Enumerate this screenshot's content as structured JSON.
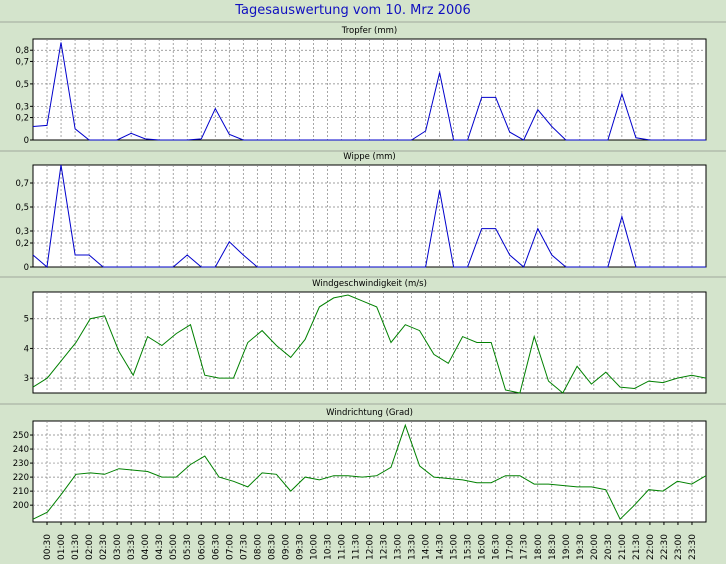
{
  "title": "Tagesauswertung vom 10. Mrz 2006",
  "x_labels": [
    "00:30",
    "01:00",
    "01:30",
    "02:00",
    "02:30",
    "03:00",
    "03:30",
    "04:00",
    "04:30",
    "05:00",
    "05:30",
    "06:00",
    "06:30",
    "07:00",
    "07:30",
    "08:00",
    "08:30",
    "09:00",
    "09:30",
    "10:00",
    "10:30",
    "11:00",
    "11:30",
    "12:00",
    "12:30",
    "13:00",
    "13:30",
    "14:00",
    "14:30",
    "15:00",
    "15:30",
    "16:00",
    "16:30",
    "17:00",
    "17:30",
    "18:00",
    "18:30",
    "19:00",
    "19:30",
    "20:00",
    "20:30",
    "21:00",
    "21:30",
    "22:00",
    "22:30",
    "23:00",
    "23:30"
  ],
  "chart_data": [
    {
      "type": "line",
      "title": "Tropfer (mm)",
      "color": "#0000cc",
      "ylim": [
        0,
        0.9
      ],
      "yticks": [
        0,
        0.2,
        0.3,
        0.5,
        0.7,
        0.8
      ],
      "ytick_labels": [
        "0",
        "0,2",
        "0,3",
        "0,5",
        "0,7",
        "0,8"
      ],
      "values": [
        0.12,
        0.13,
        0.87,
        0.1,
        0,
        0,
        0,
        0.06,
        0.01,
        0,
        0,
        0,
        0.01,
        0.28,
        0.05,
        0,
        0,
        0,
        0,
        0,
        0,
        0,
        0,
        0,
        0,
        0,
        0,
        0,
        0.08,
        0.6,
        0,
        0,
        0.38,
        0.38,
        0.07,
        0,
        0.27,
        0.12,
        0,
        0,
        0,
        0,
        0.41,
        0.02,
        0,
        0,
        0,
        0,
        0
      ]
    },
    {
      "type": "line",
      "title": "Wippe (mm)",
      "color": "#0000cc",
      "ylim": [
        0,
        0.85
      ],
      "yticks": [
        0,
        0.2,
        0.3,
        0.5,
        0.7
      ],
      "ytick_labels": [
        "0",
        "0,2",
        "0,3",
        "0,5",
        "0,7"
      ],
      "values": [
        0.1,
        0,
        0.85,
        0.1,
        0.1,
        0,
        0,
        0,
        0,
        0,
        0,
        0.1,
        0,
        0,
        0.21,
        0.1,
        0,
        0,
        0,
        0,
        0,
        0,
        0,
        0,
        0,
        0,
        0,
        0,
        0,
        0.64,
        0,
        0,
        0.32,
        0.32,
        0.1,
        0,
        0.32,
        0.1,
        0,
        0,
        0,
        0,
        0.42,
        0,
        0,
        0,
        0,
        0,
        0
      ]
    },
    {
      "type": "line",
      "title": "Windgeschwindigkeit (m/s)",
      "color": "#008000",
      "ylim": [
        2.5,
        5.9
      ],
      "yticks": [
        3,
        4,
        5
      ],
      "ytick_labels": [
        "3",
        "4",
        "5"
      ],
      "values": [
        2.7,
        3,
        3.6,
        4.2,
        5,
        5.1,
        3.9,
        3.1,
        4.4,
        4.1,
        4.5,
        4.8,
        3.1,
        3,
        3,
        4.2,
        4.6,
        4.1,
        3.7,
        4.3,
        5.4,
        5.7,
        5.8,
        5.6,
        5.4,
        4.2,
        4.8,
        4.6,
        3.8,
        3.5,
        4.4,
        4.2,
        4.2,
        2.6,
        2.5,
        4.4,
        2.9,
        2.5,
        3.4,
        2.8,
        3.2,
        2.7,
        2.65,
        2.9,
        2.85,
        3,
        3.1,
        3
      ]
    },
    {
      "type": "line",
      "title": "Windrichtung (Grad)",
      "color": "#008000",
      "ylim": [
        188,
        260
      ],
      "yticks": [
        200,
        210,
        220,
        230,
        240,
        250
      ],
      "ytick_labels": [
        "200",
        "210",
        "220",
        "230",
        "240",
        "250"
      ],
      "values": [
        190,
        195,
        208,
        222,
        223,
        222,
        226,
        225,
        224,
        220,
        220,
        229,
        235,
        220,
        217,
        213,
        223,
        222,
        210,
        220,
        218,
        221,
        221,
        220,
        221,
        227,
        257,
        228,
        220,
        219,
        218,
        216,
        216,
        221,
        221,
        215,
        215,
        214,
        213,
        213,
        211,
        190,
        200,
        211,
        210,
        217,
        215,
        221
      ]
    }
  ]
}
